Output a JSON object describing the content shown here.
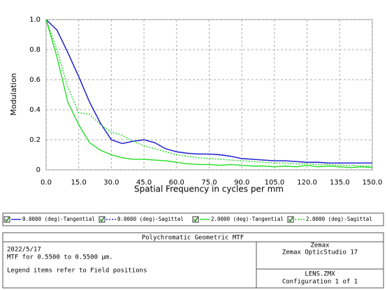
{
  "chart_data": {
    "type": "line",
    "xlabel": "Spatial Frequency in cycles per mm",
    "ylabel": "Modulation",
    "x": [
      0,
      5,
      10,
      15,
      20,
      25,
      30,
      35,
      40,
      45,
      50,
      55,
      60,
      65,
      70,
      75,
      80,
      85,
      90,
      95,
      100,
      105,
      110,
      115,
      120,
      125,
      130,
      135,
      140,
      145,
      150
    ],
    "series": [
      {
        "name": "0.0000 (deg)-Tangential",
        "color": "#1e1ecf",
        "style": "solid",
        "values": [
          1.0,
          0.93,
          0.78,
          0.62,
          0.45,
          0.31,
          0.2,
          0.175,
          0.19,
          0.2,
          0.18,
          0.14,
          0.12,
          0.11,
          0.105,
          0.105,
          0.1,
          0.09,
          0.075,
          0.07,
          0.065,
          0.06,
          0.06,
          0.055,
          0.05,
          0.05,
          0.045,
          0.045,
          0.045,
          0.045,
          0.045
        ]
      },
      {
        "name": "0.0000 (deg)-Sagittal",
        "color": "#1e1ecf",
        "style": "dotted",
        "values": [
          1.0,
          0.93,
          0.78,
          0.62,
          0.45,
          0.31,
          0.2,
          0.175,
          0.19,
          0.2,
          0.18,
          0.14,
          0.12,
          0.11,
          0.105,
          0.105,
          0.1,
          0.09,
          0.075,
          0.07,
          0.065,
          0.06,
          0.06,
          0.055,
          0.05,
          0.05,
          0.045,
          0.045,
          0.045,
          0.045,
          0.045
        ]
      },
      {
        "name": "2.0000 (deg)-Tangential",
        "color": "#22dd22",
        "style": "solid",
        "values": [
          1.0,
          0.75,
          0.45,
          0.3,
          0.18,
          0.13,
          0.1,
          0.08,
          0.07,
          0.07,
          0.065,
          0.06,
          0.05,
          0.04,
          0.035,
          0.035,
          0.03,
          0.035,
          0.03,
          0.025,
          0.025,
          0.02,
          0.025,
          0.02,
          0.03,
          0.02,
          0.025,
          0.02,
          0.015,
          0.02,
          0.015
        ]
      },
      {
        "name": "2.0000 (deg)-Sagittal",
        "color": "#22dd22",
        "style": "dotted",
        "values": [
          1.0,
          0.8,
          0.55,
          0.38,
          0.37,
          0.3,
          0.25,
          0.23,
          0.19,
          0.16,
          0.14,
          0.12,
          0.1,
          0.09,
          0.08,
          0.075,
          0.07,
          0.065,
          0.06,
          0.055,
          0.05,
          0.045,
          0.045,
          0.04,
          0.04,
          0.035,
          0.035,
          0.03,
          0.03,
          0.025,
          0.025
        ]
      }
    ],
    "xlim": [
      0,
      150
    ],
    "ylim": [
      0,
      1
    ],
    "xticks": [
      {
        "value": 0,
        "label": "0.0"
      },
      {
        "value": 15,
        "label": "15.0"
      },
      {
        "value": 30,
        "label": "30.0"
      },
      {
        "value": 45,
        "label": "45.0"
      },
      {
        "value": 60,
        "label": "60.0"
      },
      {
        "value": 75,
        "label": "75.0"
      },
      {
        "value": 90,
        "label": "90.0"
      },
      {
        "value": 105,
        "label": "105.0"
      },
      {
        "value": 120,
        "label": "120.0"
      },
      {
        "value": 135,
        "label": "135.0"
      },
      {
        "value": 150,
        "label": "150.0"
      }
    ],
    "yticks": [
      0,
      0.2,
      0.4,
      0.6,
      0.8,
      {
        "value": 1,
        "label": "1.0"
      }
    ],
    "grid": true
  },
  "footer": {
    "title": "Polychromatic Geometric MTF",
    "date": "2022/5/17",
    "description": "MTF for 0.5500 to 0.5500 µm.",
    "note": "Legend items refer to Field positions",
    "company": "Zemax",
    "product": "Zemax OpticStudio 17",
    "file": "LENS.ZMX",
    "configuration": "Configuration 1 of 1"
  }
}
